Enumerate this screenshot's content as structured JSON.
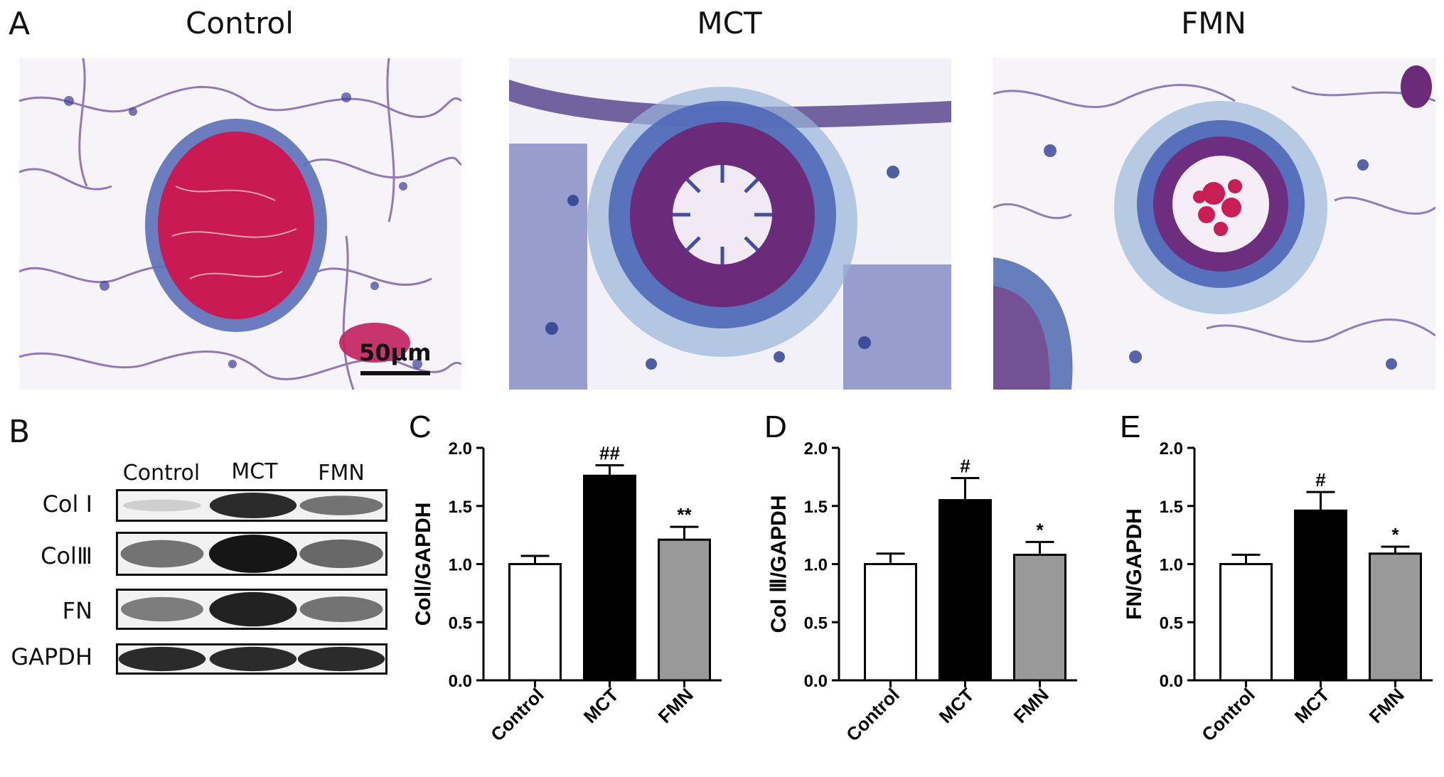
{
  "panel_a": {
    "letter": "A",
    "titles": [
      "Control",
      "MCT",
      "FMN"
    ],
    "scale_bar_label": "50μm"
  },
  "panel_b": {
    "letter": "B",
    "columns": [
      "Control",
      "MCT",
      "FMN"
    ],
    "rows": [
      {
        "label": "Col Ⅰ",
        "intensity": [
          0.1,
          0.9,
          0.55
        ]
      },
      {
        "label": "ColⅢ",
        "intensity": [
          0.55,
          1.0,
          0.6
        ]
      },
      {
        "label": "FN",
        "intensity": [
          0.5,
          0.95,
          0.55
        ]
      },
      {
        "label": "GAPDH",
        "intensity": [
          0.9,
          0.9,
          0.9
        ]
      }
    ]
  },
  "colors": {
    "control": "#ffffff",
    "mct": "#000000",
    "fmn": "#999999"
  },
  "chart_data": [
    {
      "letter": "C",
      "type": "bar",
      "categories": [
        "Control",
        "MCT",
        "FMN"
      ],
      "values": [
        1.0,
        1.76,
        1.21
      ],
      "errors": [
        0.07,
        0.09,
        0.11
      ],
      "annotations": [
        "",
        "##",
        "**"
      ],
      "ylabel": "ColⅠ/GAPDH",
      "ylim": [
        0,
        2.0
      ],
      "yticks": [
        "0.0",
        "0.5",
        "1.0",
        "1.5",
        "2.0"
      ]
    },
    {
      "letter": "D",
      "type": "bar",
      "categories": [
        "Control",
        "MCT",
        "FMN"
      ],
      "values": [
        1.0,
        1.55,
        1.08
      ],
      "errors": [
        0.09,
        0.19,
        0.11
      ],
      "annotations": [
        "",
        "#",
        "*"
      ],
      "ylabel": "Col Ⅲ/GAPDH",
      "ylim": [
        0,
        2.0
      ],
      "yticks": [
        "0.0",
        "0.5",
        "1.0",
        "1.5",
        "2.0"
      ]
    },
    {
      "letter": "E",
      "type": "bar",
      "categories": [
        "Control",
        "MCT",
        "FMN"
      ],
      "values": [
        1.0,
        1.46,
        1.09
      ],
      "errors": [
        0.08,
        0.16,
        0.06
      ],
      "annotations": [
        "",
        "#",
        "*"
      ],
      "ylabel": "FN/GAPDH",
      "ylim": [
        0,
        2.0
      ],
      "yticks": [
        "0.0",
        "0.5",
        "1.0",
        "1.5",
        "2.0"
      ]
    }
  ]
}
